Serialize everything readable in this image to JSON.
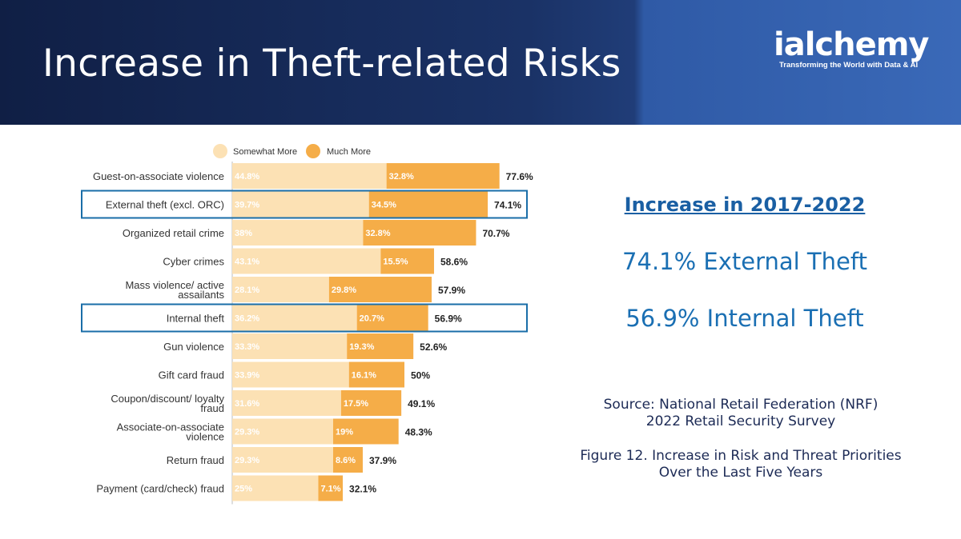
{
  "header": {
    "title": "Increase in Theft-related Risks"
  },
  "logo": {
    "brand": "ialchemy",
    "tagline": "Transforming the World with Data & AI"
  },
  "side": {
    "heading": "Increase in 2017-2022",
    "stat1": "74.1% External Theft",
    "stat2": "56.9% Internal Theft",
    "source_line1": "Source: National Retail Federation (NRF)",
    "source_line2": "2022 Retail Security Survey",
    "figure_line1": "Figure 12. Increase in Risk and Threat Priorities",
    "figure_line2": "Over the Last Five Years"
  },
  "chart_data": {
    "type": "bar",
    "orientation": "horizontal",
    "stacked": true,
    "legend_position": "top",
    "colors": {
      "somewhat": "#fce1b4",
      "much": "#f5ad48",
      "highlight": "#1a6ea8"
    },
    "categories": [
      [
        "Guest-on-associate violence"
      ],
      [
        "External theft (excl. ORC)"
      ],
      [
        "Organized retail crime"
      ],
      [
        "Cyber crimes"
      ],
      [
        "Mass violence/ active",
        "assailants"
      ],
      [
        "Internal theft"
      ],
      [
        "Gun violence"
      ],
      [
        "Gift card fraud"
      ],
      [
        "Coupon/discount/ loyalty",
        "fraud"
      ],
      [
        "Associate-on-associate",
        "violence"
      ],
      [
        "Return fraud"
      ],
      [
        "Payment (card/check) fraud"
      ]
    ],
    "series": [
      {
        "name": "Somewhat More",
        "values": [
          44.8,
          39.7,
          38,
          43.1,
          28.1,
          36.2,
          33.3,
          33.9,
          31.6,
          29.3,
          29.3,
          25
        ],
        "labels": [
          "44.8%",
          "39.7%",
          "38%",
          "43.1%",
          "28.1%",
          "36.2%",
          "33.3%",
          "33.9%",
          "31.6%",
          "29.3%",
          "29.3%",
          "25%"
        ]
      },
      {
        "name": "Much More",
        "values": [
          32.8,
          34.5,
          32.8,
          15.5,
          29.8,
          20.7,
          19.3,
          16.1,
          17.5,
          19,
          8.6,
          7.1
        ],
        "labels": [
          "32.8%",
          "34.5%",
          "32.8%",
          "15.5%",
          "29.8%",
          "20.7%",
          "19.3%",
          "16.1%",
          "17.5%",
          "19%",
          "8.6%",
          "7.1%"
        ]
      }
    ],
    "totals": [
      "77.6%",
      "74.1%",
      "70.7%",
      "58.6%",
      "57.9%",
      "56.9%",
      "52.6%",
      "50%",
      "49.1%",
      "48.3%",
      "37.9%",
      "32.1%"
    ],
    "highlighted": [
      1,
      5
    ]
  }
}
